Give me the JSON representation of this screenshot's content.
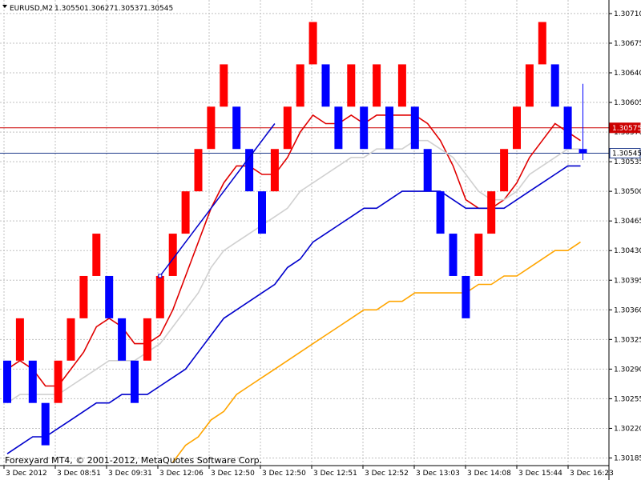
{
  "header": {
    "symbol": "EURUSD,M2",
    "open": "1.30550",
    "high": "1.30627",
    "low": "1.30537",
    "close": "1.30545"
  },
  "footer": {
    "copyright": "Forexyard MT4, © 2001-2012, MetaQuotes Software Corp."
  },
  "colors": {
    "up_brick": "#ff0000",
    "down_brick": "#0000ff",
    "grid": "#c0c0c0",
    "ma_red": "#e00000",
    "ma_silver": "#d0d0d0",
    "ma_blue": "#0000cc",
    "ma_orange": "#ffa500",
    "trend": "#0000cc"
  },
  "chart_data": {
    "type": "renko",
    "title": "EURUSD,M2",
    "brick_size": 0.0005,
    "y_ticks": [
      "1.30710",
      "1.30675",
      "1.30640",
      "1.30605",
      "1.30570",
      "1.30535",
      "1.30500",
      "1.30465",
      "1.30430",
      "1.30395",
      "1.30360",
      "1.30325",
      "1.30290",
      "1.30255",
      "1.30220",
      "1.30185"
    ],
    "x_ticks": [
      "3 Dec 2012",
      "3 Dec 08:51",
      "3 Dec 09:31",
      "3 Dec 12:06",
      "3 Dec 12:50",
      "3 Dec 12:50",
      "3 Dec 12:51",
      "3 Dec 12:52",
      "3 Dec 13:03",
      "3 Dec 14:08",
      "3 Dec 15:44",
      "3 Dec 16:23"
    ],
    "ylim": [
      1.30176,
      1.30726
    ],
    "bricks": [
      {
        "dir": "down",
        "low": 1.3025,
        "high": 1.303
      },
      {
        "dir": "up",
        "low": 1.303,
        "high": 1.3035
      },
      {
        "dir": "down",
        "low": 1.3025,
        "high": 1.303
      },
      {
        "dir": "down",
        "low": 1.302,
        "high": 1.3025
      },
      {
        "dir": "up",
        "low": 1.3025,
        "high": 1.303
      },
      {
        "dir": "up",
        "low": 1.303,
        "high": 1.3035
      },
      {
        "dir": "up",
        "low": 1.3035,
        "high": 1.304
      },
      {
        "dir": "up",
        "low": 1.304,
        "high": 1.3045
      },
      {
        "dir": "down",
        "low": 1.3035,
        "high": 1.304
      },
      {
        "dir": "down",
        "low": 1.303,
        "high": 1.3035
      },
      {
        "dir": "down",
        "low": 1.3025,
        "high": 1.303
      },
      {
        "dir": "up",
        "low": 1.303,
        "high": 1.3035
      },
      {
        "dir": "up",
        "low": 1.3035,
        "high": 1.304
      },
      {
        "dir": "up",
        "low": 1.304,
        "high": 1.3045
      },
      {
        "dir": "up",
        "low": 1.3045,
        "high": 1.305
      },
      {
        "dir": "up",
        "low": 1.305,
        "high": 1.3055
      },
      {
        "dir": "up",
        "low": 1.3055,
        "high": 1.306
      },
      {
        "dir": "up",
        "low": 1.306,
        "high": 1.3065
      },
      {
        "dir": "down",
        "low": 1.3055,
        "high": 1.306
      },
      {
        "dir": "down",
        "low": 1.305,
        "high": 1.3055
      },
      {
        "dir": "down",
        "low": 1.3045,
        "high": 1.305
      },
      {
        "dir": "up",
        "low": 1.305,
        "high": 1.3055
      },
      {
        "dir": "up",
        "low": 1.3055,
        "high": 1.306
      },
      {
        "dir": "up",
        "low": 1.306,
        "high": 1.3065
      },
      {
        "dir": "up",
        "low": 1.3065,
        "high": 1.307
      },
      {
        "dir": "down",
        "low": 1.306,
        "high": 1.3065
      },
      {
        "dir": "down",
        "low": 1.3055,
        "high": 1.306
      },
      {
        "dir": "up",
        "low": 1.306,
        "high": 1.3065
      },
      {
        "dir": "down",
        "low": 1.3055,
        "high": 1.306
      },
      {
        "dir": "up",
        "low": 1.306,
        "high": 1.3065
      },
      {
        "dir": "down",
        "low": 1.3055,
        "high": 1.306
      },
      {
        "dir": "up",
        "low": 1.306,
        "high": 1.3065
      },
      {
        "dir": "down",
        "low": 1.3055,
        "high": 1.306
      },
      {
        "dir": "down",
        "low": 1.305,
        "high": 1.3055
      },
      {
        "dir": "down",
        "low": 1.3045,
        "high": 1.305
      },
      {
        "dir": "down",
        "low": 1.304,
        "high": 1.3045
      },
      {
        "dir": "down",
        "low": 1.3035,
        "high": 1.304
      },
      {
        "dir": "up",
        "low": 1.304,
        "high": 1.3045
      },
      {
        "dir": "up",
        "low": 1.3045,
        "high": 1.305
      },
      {
        "dir": "up",
        "low": 1.305,
        "high": 1.3055
      },
      {
        "dir": "up",
        "low": 1.3055,
        "high": 1.306
      },
      {
        "dir": "up",
        "low": 1.306,
        "high": 1.3065
      },
      {
        "dir": "up",
        "low": 1.3065,
        "high": 1.307
      },
      {
        "dir": "down",
        "low": 1.306,
        "high": 1.3065
      },
      {
        "dir": "down",
        "low": 1.3055,
        "high": 1.306
      }
    ],
    "current_bar": {
      "open": 1.3055,
      "high": 1.30627,
      "low": 1.30537,
      "close": 1.30545
    },
    "hlines": [
      {
        "price": 1.30575,
        "label": "1.30575",
        "color": "#cc0000"
      },
      {
        "price": 1.30545,
        "label": "1.30545",
        "color": "#1e3a8a"
      }
    ],
    "series": [
      {
        "color": "#e00000",
        "values": [
          1.3029,
          1.303,
          1.3029,
          1.3027,
          1.3027,
          1.3029,
          1.3031,
          1.3034,
          1.3035,
          1.3034,
          1.3032,
          1.3032,
          1.3033,
          1.3036,
          1.304,
          1.3044,
          1.3048,
          1.3051,
          1.3053,
          1.3053,
          1.3052,
          1.3052,
          1.3054,
          1.3057,
          1.3059,
          1.3058,
          1.3058,
          1.3059,
          1.3058,
          1.3059,
          1.3059,
          1.3059,
          1.3059,
          1.3058,
          1.3056,
          1.3053,
          1.3049,
          1.3048,
          1.3048,
          1.3049,
          1.3051,
          1.3054,
          1.3056,
          1.3058,
          1.3057,
          1.3056
        ]
      },
      {
        "color": "#d0d0d0",
        "values": [
          1.3025,
          1.3026,
          1.3026,
          1.3026,
          1.3026,
          1.3027,
          1.3028,
          1.3029,
          1.303,
          1.303,
          1.303,
          1.3031,
          1.3032,
          1.3034,
          1.3036,
          1.3038,
          1.3041,
          1.3043,
          1.3044,
          1.3045,
          1.3046,
          1.3047,
          1.3048,
          1.305,
          1.3051,
          1.3052,
          1.3053,
          1.3054,
          1.3054,
          1.3055,
          1.3055,
          1.3055,
          1.3056,
          1.3056,
          1.3055,
          1.3054,
          1.3052,
          1.305,
          1.3049,
          1.3049,
          1.305,
          1.3052,
          1.3053,
          1.3054,
          1.3055,
          1.3055
        ]
      },
      {
        "color": "#0000cc",
        "values": [
          1.3019,
          1.302,
          1.3021,
          1.3021,
          1.3022,
          1.3023,
          1.3024,
          1.3025,
          1.3025,
          1.3026,
          1.3026,
          1.3026,
          1.3027,
          1.3028,
          1.3029,
          1.3031,
          1.3033,
          1.3035,
          1.3036,
          1.3037,
          1.3038,
          1.3039,
          1.3041,
          1.3042,
          1.3044,
          1.3045,
          1.3046,
          1.3047,
          1.3048,
          1.3048,
          1.3049,
          1.305,
          1.305,
          1.305,
          1.305,
          1.3049,
          1.3048,
          1.3048,
          1.3048,
          1.3048,
          1.3049,
          1.305,
          1.3051,
          1.3052,
          1.3053,
          1.3053
        ]
      },
      {
        "color": "#ffa500",
        "values": [
          null,
          null,
          null,
          null,
          null,
          null,
          null,
          null,
          null,
          null,
          null,
          null,
          null,
          1.3018,
          1.302,
          1.3021,
          1.3023,
          1.3024,
          1.3026,
          1.3027,
          1.3028,
          1.3029,
          1.303,
          1.3031,
          1.3032,
          1.3033,
          1.3034,
          1.3035,
          1.3036,
          1.3036,
          1.3037,
          1.3037,
          1.3038,
          1.3038,
          1.3038,
          1.3038,
          1.3038,
          1.3039,
          1.3039,
          1.304,
          1.304,
          1.3041,
          1.3042,
          1.3043,
          1.3043,
          1.3044
        ]
      }
    ],
    "trend_line": {
      "from": [
        12,
        1.304
      ],
      "to": [
        21,
        1.3058
      ]
    }
  }
}
